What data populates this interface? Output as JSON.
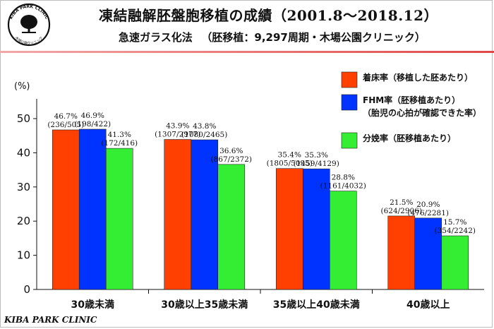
{
  "header": {
    "title": "凍結融解胚盤胞移植の成績（2001.8〜2018.12）",
    "subtitle": "急速ガラス化法 　（胚移植：9,297周期・木場公園クリニック）",
    "logo_text_top": "KIBA PARK CLINIC",
    "logo_text_bottom": "木場公園クリニック"
  },
  "footer": {
    "text": "KIBA PARK CLINIC"
  },
  "chart_data": {
    "type": "bar",
    "title": "凍結融解胚盤胞移植の成績（2001.8〜2018.12）",
    "ylabel": "(%)",
    "xlabel": "",
    "ylim": [
      0,
      50
    ],
    "yticks": [
      0,
      10,
      20,
      30,
      40,
      50
    ],
    "grid": false,
    "legend_position": "top-right",
    "categories": [
      "30歳未満",
      "30歳以上35歳未満",
      "35歳以上40歳未満",
      "40歳以上"
    ],
    "series": [
      {
        "name": "着床率（移植した胚あたり）",
        "legend_lines": [
          "着床率（移植した胚あたり）"
        ],
        "color": "#ff4000",
        "values": [
          46.7,
          43.9,
          35.4,
          21.5
        ],
        "labels": [
          "46.7%",
          "43.9%",
          "35.4%",
          "21.5%"
        ],
        "counts": [
          "(236/505)",
          "(1307/2977)",
          "(1805/5095)",
          "(624/2906)"
        ]
      },
      {
        "name": "FHM率（胚移植あたり）（胎児の心拍が確認できた率）",
        "legend_lines": [
          "FHM率（胚移植あたり）",
          "（胎児の心拍が確認できた率）"
        ],
        "color": "#0033ff",
        "values": [
          46.9,
          43.8,
          35.3,
          20.9
        ],
        "labels": [
          "46.9%",
          "43.8%",
          "35.3%",
          "20.9%"
        ],
        "counts": [
          "(198/422)",
          "(1080/2465)",
          "(1459/4129)",
          "(476/2281)"
        ]
      },
      {
        "name": "分娩率（胚移植あたり）",
        "legend_lines": [
          "分娩率（胚移植あたり）"
        ],
        "color": "#33ee33",
        "values": [
          41.3,
          36.6,
          28.8,
          15.7
        ],
        "labels": [
          "41.3%",
          "36.6%",
          "28.8%",
          "15.7%"
        ],
        "counts": [
          "(172/416)",
          "(867/2372)",
          "(1161/4032)",
          "(354/2242)"
        ]
      }
    ]
  }
}
